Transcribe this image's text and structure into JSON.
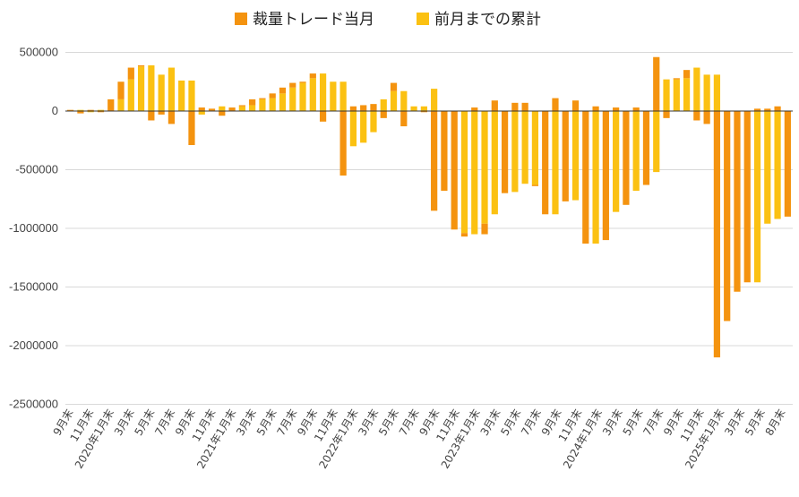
{
  "chart_data": {
    "type": "bar",
    "stacked": true,
    "title": "",
    "xlabel": "",
    "ylabel": "",
    "ylim": [
      -2500000,
      600000
    ],
    "yticks": [
      500000,
      0,
      -500000,
      -1000000,
      -1500000,
      -2000000,
      -2500000
    ],
    "ytick_labels": [
      "500000",
      "0",
      "-500000",
      "-1000000",
      "-1500000",
      "-2000000",
      "-2500000"
    ],
    "legend_position": "top-center",
    "categories": [
      "9月末",
      "10月末",
      "11月末",
      "12月末",
      "2020年1月末",
      "2月末",
      "3月末",
      "4月末",
      "5月末",
      "6月末",
      "7月末",
      "8月末",
      "9月末",
      "10月末",
      "11月末",
      "12月末",
      "2021年1月末",
      "2月末",
      "3月末",
      "4月末",
      "5月末",
      "6月末",
      "7月末",
      "8月末",
      "9月末",
      "10月末",
      "11月末",
      "12月末",
      "2022年1月末",
      "2月末",
      "3月末",
      "4月末",
      "5月末",
      "6月末",
      "7月末",
      "8月末",
      "9月末",
      "10月末",
      "11月末",
      "12月末",
      "2023年1月末",
      "2月末",
      "3月末",
      "4月末",
      "5月末",
      "6月末",
      "7月末",
      "8月末",
      "9月末",
      "10月末",
      "11月末",
      "12月末",
      "2024年1月末",
      "2月末",
      "3月末",
      "4月末",
      "5月末",
      "6月末",
      "7月末",
      "8月末",
      "9月末",
      "10月末",
      "11月末",
      "12月末",
      "2025年1月末",
      "2月末",
      "3月末",
      "4月末",
      "5月末",
      "6月末",
      "7月末",
      "8月末"
    ],
    "x_tick_labels": [
      "9月末",
      "11月末",
      "2020年1月末",
      "3月末",
      "5月末",
      "7月末",
      "9月末",
      "11月末",
      "2021年1月末",
      "3月末",
      "5月末",
      "7月末",
      "9月末",
      "11月末",
      "2022年1月末",
      "3月末",
      "5月末",
      "7月末",
      "9月末",
      "11月末",
      "2023年1月末",
      "3月末",
      "5月末",
      "7月末",
      "9月末",
      "11月末",
      "2024年1月末",
      "3月末",
      "5月末",
      "7月末",
      "9月末",
      "11月末",
      "2025年1月末",
      "3月末",
      "5月末",
      "8月末"
    ],
    "series": [
      {
        "name": "裁量トレード当月",
        "color": "#f4930f",
        "values": [
          10000,
          -20000,
          10000,
          -10000,
          100000,
          150000,
          100000,
          10000,
          -80000,
          -30000,
          -110000,
          0,
          -290000,
          30000,
          20000,
          -40000,
          30000,
          10000,
          50000,
          10000,
          40000,
          50000,
          40000,
          10000,
          40000,
          -90000,
          0,
          -550000,
          40000,
          50000,
          60000,
          -60000,
          70000,
          -130000,
          0,
          -10000,
          -850000,
          -680000,
          -1010000,
          -30000,
          30000,
          -90000,
          90000,
          -700000,
          70000,
          70000,
          -10000,
          -880000,
          110000,
          -770000,
          90000,
          -1130000,
          40000,
          -1100000,
          30000,
          -800000,
          30000,
          -630000,
          460000,
          -60000,
          10000,
          70000,
          -80000,
          -110000,
          -2100000,
          -1790000,
          -1540000,
          -1460000,
          20000,
          20000,
          40000,
          -900000
        ],
        "start_index": 0
      },
      {
        "name": "前月までの累計",
        "color": "#fbc112",
        "values": [
          0,
          10000,
          -10000,
          10000,
          0,
          100000,
          270000,
          380000,
          390000,
          310000,
          370000,
          260000,
          260000,
          -30000,
          0,
          40000,
          0,
          40000,
          50000,
          100000,
          110000,
          150000,
          200000,
          240000,
          280000,
          320000,
          250000,
          250000,
          -300000,
          -270000,
          -180000,
          100000,
          170000,
          170000,
          40000,
          40000,
          190000,
          0,
          0,
          -1040000,
          -1050000,
          -960000,
          -880000,
          0,
          -690000,
          -620000,
          -630000,
          0,
          -880000,
          0,
          -760000,
          0,
          -1130000,
          0,
          -860000,
          0,
          -680000,
          0,
          -520000,
          270000,
          270000,
          280000,
          370000,
          310000,
          310000,
          0,
          0,
          0,
          -1460000,
          -960000,
          -920000,
          0
        ]
      }
    ]
  }
}
